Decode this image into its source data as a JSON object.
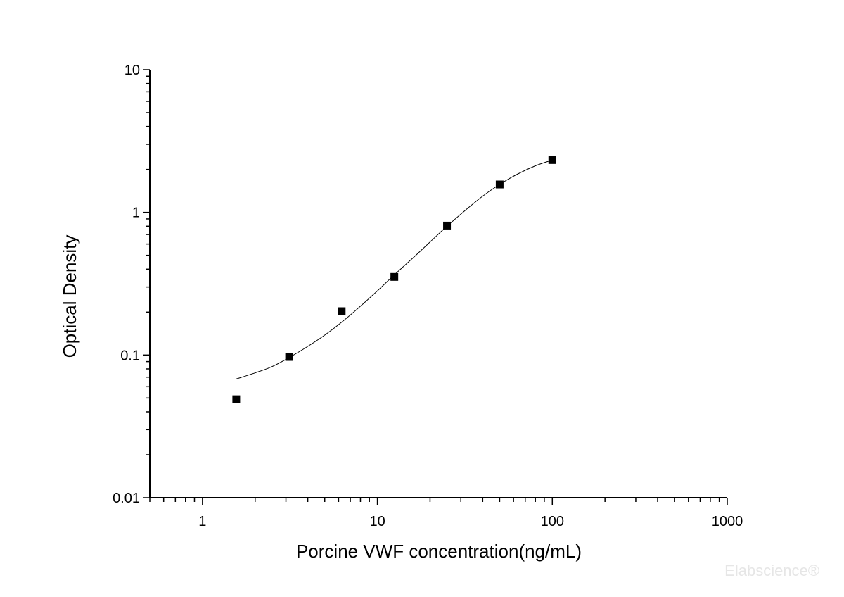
{
  "chart_data": {
    "type": "scatter",
    "title": "",
    "xlabel": "Porcine VWF concentration(ng/mL)",
    "ylabel": "Optical Density",
    "x_scale": "log",
    "y_scale": "log",
    "xlim": [
      0.5,
      1000
    ],
    "ylim": [
      0.01,
      10
    ],
    "x_ticks": [
      {
        "value": 1,
        "label": "1"
      },
      {
        "value": 10,
        "label": "10"
      },
      {
        "value": 100,
        "label": "100"
      },
      {
        "value": 1000,
        "label": "1000"
      }
    ],
    "y_ticks": [
      {
        "value": 0.01,
        "label": "0.01"
      },
      {
        "value": 0.1,
        "label": "0.1"
      },
      {
        "value": 1,
        "label": "1"
      },
      {
        "value": 10,
        "label": "10"
      }
    ],
    "grid": false,
    "legend": "none",
    "series": [
      {
        "marker": "square",
        "color": "#000000",
        "points": [
          {
            "x": 1.56,
            "y": 0.049
          },
          {
            "x": 3.13,
            "y": 0.097
          },
          {
            "x": 6.25,
            "y": 0.203
          },
          {
            "x": 12.5,
            "y": 0.353
          },
          {
            "x": 25,
            "y": 0.808
          },
          {
            "x": 50,
            "y": 1.569
          },
          {
            "x": 100,
            "y": 2.327
          }
        ]
      }
    ],
    "fit_curve": {
      "color": "#000000",
      "points": [
        {
          "x": 1.56,
          "y": 0.068
        },
        {
          "x": 2.0,
          "y": 0.075
        },
        {
          "x": 2.5,
          "y": 0.083
        },
        {
          "x": 3.13,
          "y": 0.096
        },
        {
          "x": 4.0,
          "y": 0.115
        },
        {
          "x": 5.0,
          "y": 0.138
        },
        {
          "x": 6.25,
          "y": 0.17
        },
        {
          "x": 8.0,
          "y": 0.22
        },
        {
          "x": 10.0,
          "y": 0.282
        },
        {
          "x": 12.5,
          "y": 0.365
        },
        {
          "x": 16.0,
          "y": 0.48
        },
        {
          "x": 20.0,
          "y": 0.62
        },
        {
          "x": 25.0,
          "y": 0.8
        },
        {
          "x": 32.0,
          "y": 1.04
        },
        {
          "x": 40.0,
          "y": 1.3
        },
        {
          "x": 50.0,
          "y": 1.57
        },
        {
          "x": 63.0,
          "y": 1.85
        },
        {
          "x": 80.0,
          "y": 2.12
        },
        {
          "x": 100.0,
          "y": 2.33
        }
      ]
    }
  },
  "watermark": {
    "text": "Elabscience®",
    "color": "#e6e6e6"
  }
}
